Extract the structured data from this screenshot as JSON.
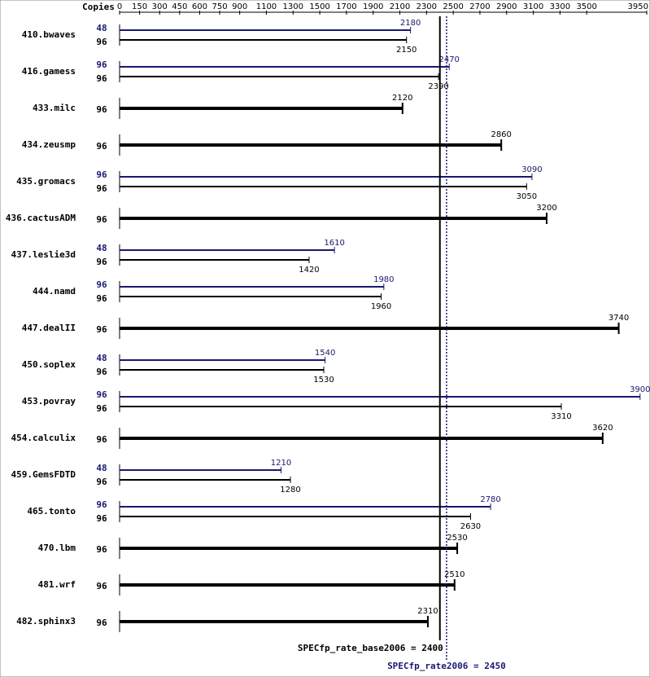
{
  "chart_data": {
    "type": "bar",
    "orientation": "horizontal",
    "copies_label": "Copies",
    "categories": [
      "410.bwaves",
      "416.gamess",
      "433.milc",
      "434.zeusmp",
      "435.gromacs",
      "436.cactusADM",
      "437.leslie3d",
      "444.namd",
      "447.dealII",
      "450.soplex",
      "453.povray",
      "454.calculix",
      "459.GemsFDTD",
      "465.tonto",
      "470.lbm",
      "481.wrf",
      "482.sphinx3"
    ],
    "series": [
      {
        "color": "#000000",
        "copies": [
          96,
          96,
          96,
          96,
          96,
          96,
          96,
          96,
          96,
          96,
          96,
          96,
          96,
          96,
          96,
          96,
          96
        ],
        "values": [
          2150,
          2390,
          2120,
          2860,
          3050,
          3200,
          1420,
          1960,
          3740,
          1530,
          3310,
          3620,
          1280,
          2630,
          2530,
          2510,
          2310
        ]
      },
      {
        "color": "#191970",
        "copies": [
          48,
          96,
          null,
          null,
          96,
          null,
          48,
          96,
          null,
          48,
          96,
          null,
          48,
          96,
          null,
          null,
          null
        ],
        "values": [
          2180,
          2470,
          null,
          null,
          3090,
          null,
          1610,
          1980,
          null,
          1540,
          3900,
          null,
          1210,
          2780,
          null,
          null,
          null
        ]
      }
    ],
    "xlim": [
      0,
      3950
    ],
    "xticks": [
      0,
      150,
      300,
      450,
      600,
      750,
      900,
      1100,
      1300,
      1500,
      1700,
      1900,
      2100,
      2300,
      2500,
      2700,
      2900,
      3100,
      3300,
      3500,
      3950
    ],
    "reference_lines": [
      {
        "label": "SPECfp_rate_base2006 = 2400",
        "value": 2400,
        "color": "#000000",
        "style": "solid"
      },
      {
        "label": "SPECfp_rate2006 = 2450",
        "value": 2450,
        "color": "#191970",
        "style": "dotted"
      }
    ]
  }
}
